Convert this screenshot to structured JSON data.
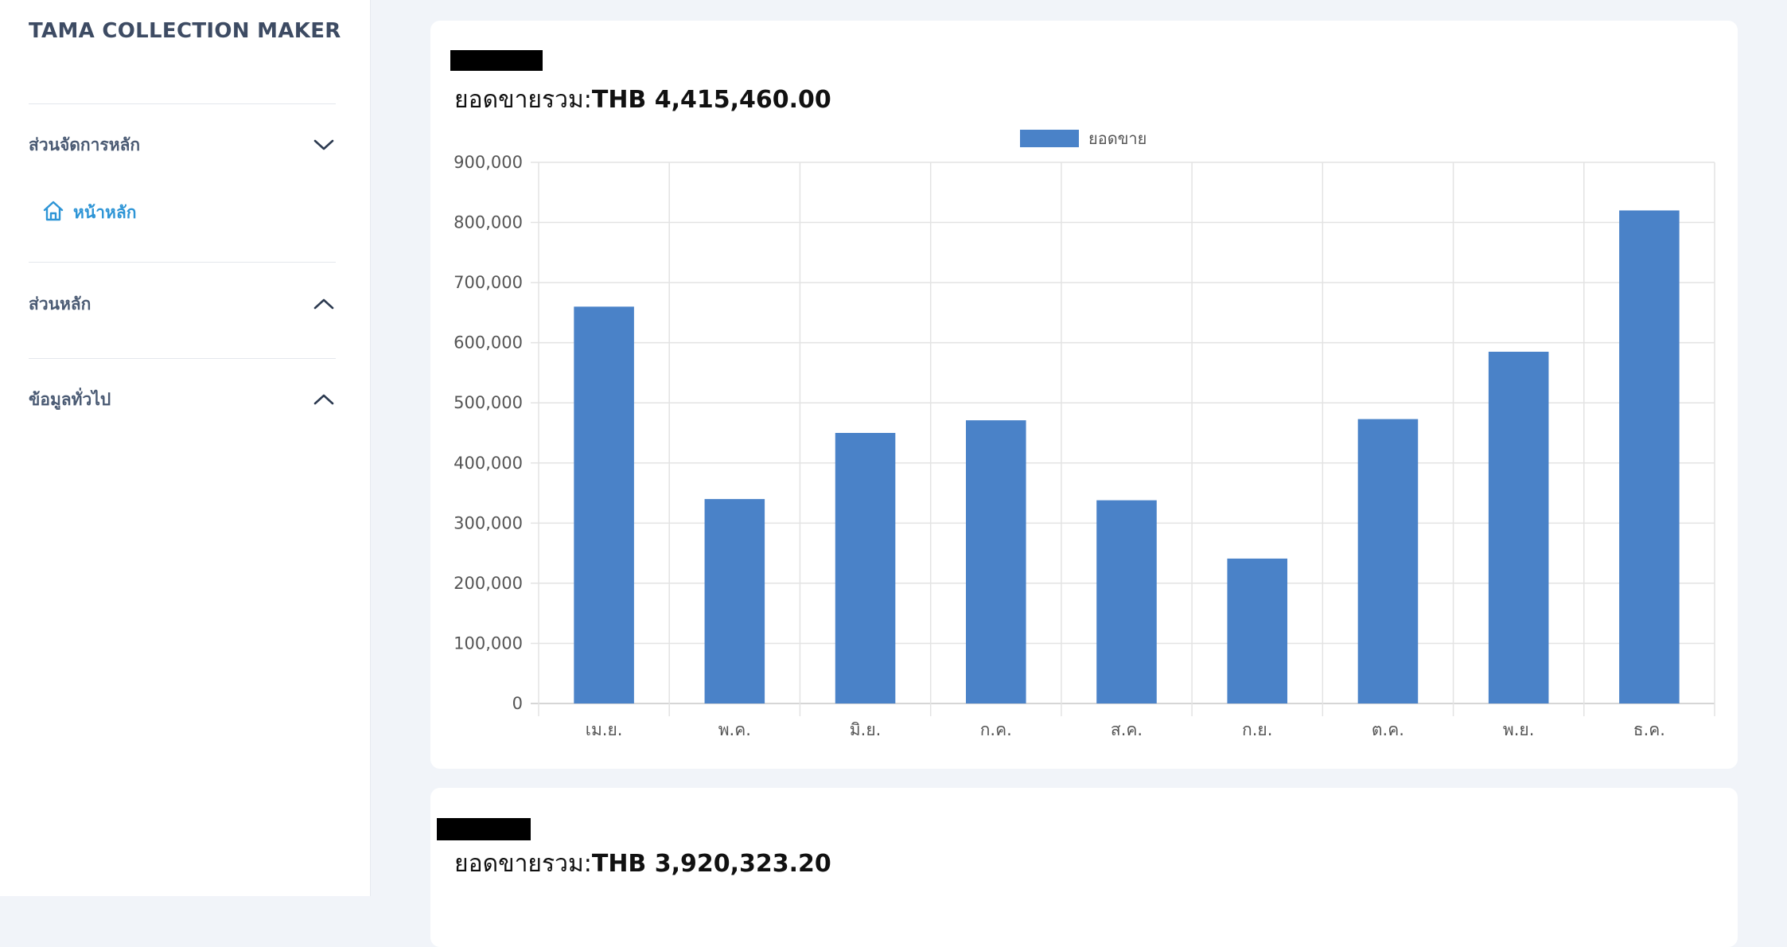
{
  "sidebar": {
    "app_title": "TAMA COLLECTION MAKER",
    "sections": [
      {
        "label": "ส่วนจัดการหลัก",
        "chevron": "chevron-down-icon"
      },
      {
        "label": "ส่วนหลัก",
        "chevron": "chevron-up-icon"
      },
      {
        "label": "ข้อมูลทั่วไป",
        "chevron": "chevron-up-icon"
      }
    ],
    "nav_home": {
      "label": "หน้าหลัก",
      "icon": "home-icon"
    }
  },
  "cards": [
    {
      "total_label": "ยอดขายรวม:",
      "total_value": "THB 4,415,460.00"
    },
    {
      "total_label": "ยอดขายรวม:",
      "total_value": "THB 3,920,323.20"
    }
  ],
  "colors": {
    "bar": "#4a82c8",
    "accent": "#2e95d6",
    "sidebar_text": "#4a5a73"
  },
  "chart_data": {
    "type": "bar",
    "categories": [
      "เม.ย.",
      "พ.ค.",
      "มิ.ย.",
      "ก.ค.",
      "ส.ค.",
      "ก.ย.",
      "ต.ค.",
      "พ.ย.",
      "ธ.ค."
    ],
    "series": [
      {
        "name": "ยอดขาย",
        "values": [
          660000,
          340000,
          450000,
          471000,
          338000,
          241000,
          473000,
          585000,
          820000
        ]
      }
    ],
    "yticks": [
      "0",
      "100,000",
      "200,000",
      "300,000",
      "400,000",
      "500,000",
      "600,000",
      "700,000",
      "800,000",
      "900,000"
    ],
    "ylim": [
      0,
      900000
    ],
    "grid": true,
    "legend": "top"
  }
}
